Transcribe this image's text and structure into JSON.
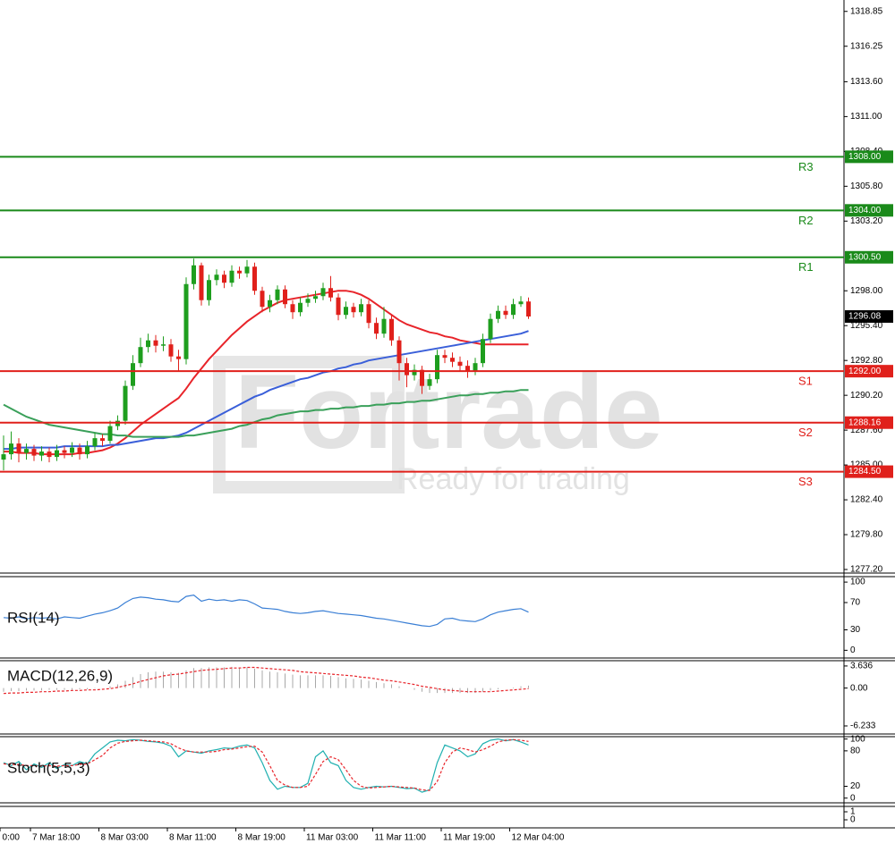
{
  "watermark": {
    "brand": "Fortrade",
    "tagline": "Ready for trading"
  },
  "chart_data": [
    {
      "type": "candlestick",
      "categories": [
        "0:00",
        null,
        null,
        null,
        "7 Mar 18:00",
        null,
        null,
        null,
        null,
        null,
        null,
        null,
        null,
        "8 Mar 03:00",
        null,
        null,
        null,
        null,
        null,
        null,
        null,
        null,
        "8 Mar 11:00",
        null,
        null,
        null,
        null,
        null,
        null,
        null,
        null,
        "8 Mar 19:00",
        null,
        null,
        null,
        null,
        null,
        null,
        null,
        null,
        "11 Mar 03:00",
        null,
        null,
        null,
        null,
        null,
        null,
        null,
        null,
        "11 Mar 11:00",
        null,
        null,
        null,
        null,
        null,
        null,
        null,
        null,
        "11 Mar 19:00",
        null,
        null,
        null,
        null,
        null,
        null,
        null,
        null,
        "12 Mar 04:00",
        null,
        null
      ],
      "open": [
        1285.4,
        1285.8,
        1286.6,
        1285.9,
        1286.2,
        1285.7,
        1286.0,
        1285.6,
        1286.1,
        1285.9,
        1286.3,
        1285.8,
        1286.4,
        1287.0,
        1286.8,
        1287.9,
        1288.3,
        1290.9,
        1292.6,
        1293.8,
        1294.3,
        1293.9,
        1294.0,
        1293.1,
        1292.9,
        1298.5,
        1299.9,
        1297.3,
        1298.8,
        1299.2,
        1298.6,
        1299.5,
        1299.3,
        1299.8,
        1298.0,
        1296.8,
        1297.3,
        1298.1,
        1297.0,
        1296.4,
        1297.1,
        1297.4,
        1297.6,
        1298.2,
        1297.5,
        1296.2,
        1296.8,
        1296.4,
        1297.0,
        1295.6,
        1294.8,
        1295.9,
        1294.3,
        1292.6,
        1291.7,
        1292.1,
        1290.9,
        1291.4,
        1293.2,
        1293.0,
        1292.7,
        1292.4,
        1292.0,
        1292.6,
        1294.4,
        1295.9,
        1296.5,
        1296.2,
        1297.0,
        1297.2
      ],
      "high": [
        1287.2,
        1287.5,
        1287.0,
        1286.6,
        1286.5,
        1286.4,
        1286.3,
        1286.5,
        1286.4,
        1286.7,
        1286.6,
        1286.8,
        1287.4,
        1287.3,
        1288.3,
        1288.7,
        1291.3,
        1293.2,
        1294.5,
        1294.8,
        1294.7,
        1294.6,
        1294.4,
        1293.6,
        1299.0,
        1300.4,
        1300.1,
        1299.2,
        1299.6,
        1299.5,
        1299.9,
        1299.8,
        1300.3,
        1300.1,
        1298.3,
        1297.7,
        1298.4,
        1298.4,
        1297.3,
        1297.5,
        1297.8,
        1298.0,
        1298.6,
        1299.1,
        1297.8,
        1297.2,
        1297.1,
        1297.4,
        1297.3,
        1296.0,
        1296.8,
        1296.2,
        1294.6,
        1293.0,
        1292.5,
        1292.4,
        1291.8,
        1293.6,
        1293.6,
        1293.4,
        1293.1,
        1292.8,
        1293.0,
        1294.8,
        1296.3,
        1296.9,
        1296.9,
        1297.4,
        1297.6,
        1297.5
      ],
      "low": [
        1284.6,
        1285.4,
        1285.2,
        1285.4,
        1285.3,
        1285.3,
        1285.2,
        1285.3,
        1285.5,
        1285.6,
        1285.4,
        1285.5,
        1286.1,
        1286.4,
        1286.6,
        1287.6,
        1288.0,
        1290.6,
        1292.3,
        1293.4,
        1293.4,
        1293.5,
        1292.7,
        1292.0,
        1292.5,
        1298.1,
        1296.9,
        1296.9,
        1298.4,
        1298.2,
        1298.3,
        1298.9,
        1299.0,
        1297.7,
        1296.4,
        1296.4,
        1297.0,
        1296.7,
        1295.9,
        1296.1,
        1296.8,
        1297.1,
        1297.3,
        1297.2,
        1295.8,
        1295.9,
        1296.0,
        1296.1,
        1295.2,
        1294.4,
        1294.5,
        1293.9,
        1291.3,
        1290.8,
        1291.3,
        1290.3,
        1290.6,
        1291.1,
        1292.6,
        1292.3,
        1292.0,
        1291.5,
        1291.7,
        1292.3,
        1294.1,
        1295.6,
        1295.9,
        1295.9,
        1296.8,
        1295.9
      ],
      "close": [
        1285.8,
        1286.6,
        1285.9,
        1286.2,
        1285.7,
        1286.0,
        1285.6,
        1286.1,
        1285.9,
        1286.3,
        1285.8,
        1286.4,
        1287.0,
        1286.8,
        1287.9,
        1288.3,
        1290.9,
        1292.6,
        1293.8,
        1294.3,
        1293.9,
        1294.0,
        1293.1,
        1292.9,
        1298.5,
        1299.9,
        1297.3,
        1298.8,
        1299.2,
        1298.6,
        1299.5,
        1299.3,
        1299.8,
        1298.0,
        1296.8,
        1297.3,
        1298.1,
        1297.0,
        1296.4,
        1297.1,
        1297.4,
        1297.6,
        1298.2,
        1297.5,
        1296.2,
        1296.8,
        1296.4,
        1297.0,
        1295.6,
        1294.8,
        1295.9,
        1294.3,
        1292.6,
        1291.7,
        1292.1,
        1290.9,
        1291.4,
        1293.2,
        1293.0,
        1292.7,
        1292.4,
        1292.0,
        1292.6,
        1294.4,
        1295.9,
        1296.5,
        1296.2,
        1297.0,
        1297.2,
        1296.08
      ],
      "up_color": "#1e9e1e",
      "down_color": "#e0201b",
      "series": [
        {
          "color": "#e8242a",
          "values": [
            1286.0,
            1286.0,
            1285.9,
            1285.9,
            1285.9,
            1285.8,
            1285.8,
            1285.8,
            1285.8,
            1285.8,
            1285.9,
            1285.9,
            1286.0,
            1286.1,
            1286.3,
            1286.6,
            1287.0,
            1287.5,
            1288.0,
            1288.4,
            1288.8,
            1289.2,
            1289.6,
            1290.0,
            1290.7,
            1291.5,
            1292.2,
            1292.9,
            1293.5,
            1294.1,
            1294.7,
            1295.2,
            1295.7,
            1296.1,
            1296.5,
            1296.8,
            1297.1,
            1297.3,
            1297.4,
            1297.5,
            1297.6,
            1297.7,
            1297.8,
            1297.9,
            1298.0,
            1298.0,
            1297.9,
            1297.7,
            1297.4,
            1297.0,
            1296.6,
            1296.2,
            1295.8,
            1295.5,
            1295.3,
            1295.1,
            1294.9,
            1294.8,
            1294.6,
            1294.5,
            1294.3,
            1294.2,
            1294.1,
            1294.0,
            1294.0,
            1294.0,
            1294.0,
            1294.0,
            1294.0,
            1294.0
          ]
        },
        {
          "color": "#3a5fd9",
          "values": [
            1286.2,
            1286.2,
            1286.3,
            1286.3,
            1286.3,
            1286.3,
            1286.3,
            1286.3,
            1286.4,
            1286.4,
            1286.4,
            1286.4,
            1286.4,
            1286.4,
            1286.5,
            1286.5,
            1286.6,
            1286.7,
            1286.8,
            1286.9,
            1287.0,
            1287.0,
            1287.1,
            1287.2,
            1287.4,
            1287.7,
            1288.0,
            1288.3,
            1288.6,
            1288.9,
            1289.2,
            1289.5,
            1289.8,
            1290.1,
            1290.3,
            1290.6,
            1290.8,
            1291.0,
            1291.2,
            1291.4,
            1291.5,
            1291.7,
            1291.9,
            1292.0,
            1292.2,
            1292.3,
            1292.5,
            1292.6,
            1292.8,
            1292.9,
            1293.0,
            1293.1,
            1293.2,
            1293.3,
            1293.4,
            1293.5,
            1293.6,
            1293.7,
            1293.8,
            1293.9,
            1294.0,
            1294.1,
            1294.2,
            1294.3,
            1294.4,
            1294.5,
            1294.6,
            1294.7,
            1294.8,
            1295.0
          ]
        },
        {
          "color": "#3aa05a",
          "values": [
            1289.5,
            1289.2,
            1288.9,
            1288.6,
            1288.4,
            1288.2,
            1288.0,
            1287.9,
            1287.8,
            1287.7,
            1287.6,
            1287.5,
            1287.4,
            1287.3,
            1287.3,
            1287.2,
            1287.2,
            1287.1,
            1287.1,
            1287.1,
            1287.1,
            1287.1,
            1287.1,
            1287.1,
            1287.2,
            1287.2,
            1287.3,
            1287.4,
            1287.5,
            1287.6,
            1287.7,
            1287.9,
            1288.0,
            1288.2,
            1288.4,
            1288.5,
            1288.7,
            1288.8,
            1288.9,
            1289.0,
            1289.0,
            1289.1,
            1289.1,
            1289.2,
            1289.2,
            1289.3,
            1289.3,
            1289.4,
            1289.4,
            1289.5,
            1289.5,
            1289.6,
            1289.6,
            1289.7,
            1289.7,
            1289.8,
            1289.8,
            1289.9,
            1290.0,
            1290.1,
            1290.2,
            1290.2,
            1290.3,
            1290.3,
            1290.4,
            1290.4,
            1290.5,
            1290.5,
            1290.6,
            1290.6
          ]
        }
      ],
      "levels": [
        {
          "name": "R3",
          "value": 1308,
          "label": "1308.00",
          "color": "#1a8a1a"
        },
        {
          "name": "R2",
          "value": 1304,
          "label": "1304.00",
          "color": "#1a8a1a"
        },
        {
          "name": "R1",
          "value": 1300.5,
          "label": "1300.50",
          "color": "#1a8a1a"
        },
        {
          "name": "S1",
          "value": 1292,
          "label": "1292.00",
          "color": "#e0201b"
        },
        {
          "name": "S2",
          "value": 1288.16,
          "label": "1288.16",
          "color": "#e0201b"
        },
        {
          "name": "S3",
          "value": 1284.5,
          "label": "1284.50",
          "color": "#e0201b"
        }
      ],
      "last_price": {
        "value": 1296.08,
        "label": "1296.08"
      },
      "ylim": [
        1277.0,
        1319.5
      ],
      "yticks": [
        1318.85,
        1316.25,
        {
          "value": 1313.6,
          "label": "1313.60"
        },
        {
          "value": 1311,
          "label": "1311.00"
        },
        {
          "value": 1308.4,
          "label": "1308.40"
        },
        {
          "value": 1305.8,
          "label": "1305.80"
        },
        {
          "value": 1303.2,
          "label": "1303.20"
        },
        {
          "value": 1298,
          "label": "1298.00"
        },
        {
          "value": 1295.4,
          "label": "1295.40"
        },
        {
          "value": 1292.8,
          "label": "1292.80"
        },
        {
          "value": 1290.2,
          "label": "1290.20"
        },
        {
          "value": 1287.6,
          "label": "1287.60"
        },
        {
          "value": 1285,
          "label": "1285.00"
        },
        {
          "value": 1282.4,
          "label": "1282.40"
        },
        {
          "value": 1279.8,
          "label": "1279.80"
        },
        {
          "value": 1277.2,
          "label": "1277.20"
        }
      ]
    },
    {
      "type": "line",
      "title": "RSI(14)",
      "ylim": [
        -10,
        108
      ],
      "yticks": [
        0,
        30,
        70,
        100
      ],
      "series": [
        {
          "color": "#3a7fd5",
          "values": [
            48,
            47,
            49,
            46,
            48,
            47,
            48,
            46,
            49,
            48,
            47,
            50,
            53,
            55,
            58,
            62,
            70,
            76,
            78,
            77,
            75,
            74,
            72,
            71,
            79,
            81,
            72,
            75,
            73,
            74,
            72,
            74,
            73,
            68,
            62,
            61,
            60,
            57,
            55,
            54,
            55,
            57,
            58,
            56,
            54,
            53,
            52,
            51,
            49,
            47,
            46,
            44,
            42,
            40,
            38,
            36,
            35,
            38,
            46,
            47,
            44,
            43,
            42,
            46,
            52,
            56,
            58,
            60,
            61,
            56
          ]
        }
      ]
    },
    {
      "type": "macd",
      "title": "MACD(12,26,9)",
      "ylim": [
        -7.56,
        4.36
      ],
      "yticks": [
        -6.233,
        {
          "value": 0,
          "label": "0.00"
        },
        3.636
      ],
      "histogram": {
        "color": "#a8a8a8",
        "values": [
          -0.6,
          -0.5,
          -0.5,
          -0.4,
          -0.4,
          -0.4,
          -0.3,
          -0.3,
          -0.3,
          -0.3,
          -0.2,
          -0.2,
          -0.1,
          0.0,
          0.3,
          0.6,
          1.2,
          1.8,
          2.3,
          2.6,
          2.7,
          2.7,
          2.6,
          2.5,
          2.9,
          3.3,
          3.3,
          3.4,
          3.4,
          3.4,
          3.5,
          3.4,
          3.4,
          3.2,
          2.9,
          2.7,
          2.6,
          2.4,
          2.2,
          2.1,
          2.1,
          2.1,
          2.1,
          2.0,
          1.8,
          1.6,
          1.5,
          1.4,
          1.2,
          1.0,
          0.8,
          0.6,
          0.3,
          0.0,
          -0.3,
          -0.6,
          -0.8,
          -0.8,
          -0.8,
          -0.8,
          -0.8,
          -0.8,
          -0.8,
          -0.6,
          -0.4,
          -0.2,
          0.0,
          0.1,
          0.3,
          0.4
        ]
      },
      "signal": {
        "color": "#e8242a",
        "dash": true,
        "values": [
          -0.9,
          -0.8,
          -0.8,
          -0.7,
          -0.7,
          -0.6,
          -0.6,
          -0.5,
          -0.5,
          -0.4,
          -0.4,
          -0.3,
          -0.3,
          -0.2,
          -0.1,
          0.1,
          0.4,
          0.7,
          1.1,
          1.4,
          1.7,
          2.0,
          2.2,
          2.3,
          2.5,
          2.7,
          2.9,
          3.0,
          3.1,
          3.2,
          3.3,
          3.3,
          3.4,
          3.4,
          3.3,
          3.2,
          3.1,
          3.0,
          2.9,
          2.7,
          2.6,
          2.5,
          2.4,
          2.3,
          2.2,
          2.1,
          2.0,
          1.8,
          1.7,
          1.5,
          1.3,
          1.2,
          1.0,
          0.8,
          0.6,
          0.3,
          0.1,
          -0.1,
          -0.3,
          -0.4,
          -0.5,
          -0.6,
          -0.6,
          -0.6,
          -0.6,
          -0.5,
          -0.4,
          -0.3,
          -0.2,
          -0.1
        ]
      }
    },
    {
      "type": "line",
      "title": "Stoch(5,5,3)",
      "ylim": [
        -8,
        104
      ],
      "yticks": [
        0,
        20,
        80,
        100
      ],
      "series": [
        {
          "color": "#1fb0b0",
          "values": [
            60,
            55,
            62,
            48,
            58,
            52,
            60,
            50,
            57,
            55,
            62,
            58,
            75,
            85,
            95,
            98,
            97,
            99,
            98,
            96,
            95,
            93,
            88,
            70,
            80,
            78,
            76,
            80,
            82,
            85,
            84,
            88,
            90,
            85,
            60,
            30,
            15,
            20,
            18,
            18,
            25,
            70,
            80,
            60,
            55,
            30,
            18,
            15,
            18,
            20,
            19,
            20,
            18,
            16,
            17,
            10,
            14,
            60,
            90,
            85,
            80,
            70,
            75,
            92,
            98,
            100,
            97,
            99,
            95,
            90
          ]
        },
        {
          "color": "#e8242a",
          "dash": true,
          "values": [
            58,
            57,
            57,
            55,
            55,
            54,
            55,
            54,
            55,
            55,
            57,
            58,
            65,
            72,
            85,
            93,
            96,
            97,
            98,
            97,
            96,
            95,
            92,
            85,
            80,
            78,
            78,
            78,
            79,
            82,
            83,
            85,
            87,
            88,
            78,
            55,
            30,
            22,
            18,
            18,
            20,
            40,
            62,
            70,
            65,
            48,
            30,
            20,
            17,
            18,
            19,
            20,
            19,
            18,
            17,
            14,
            13,
            28,
            60,
            78,
            85,
            82,
            78,
            82,
            88,
            95,
            98,
            99,
            98,
            96
          ]
        }
      ]
    },
    {
      "type": "line",
      "ylim": [
        -0.89,
        1.67
      ],
      "yticks": [
        0,
        1
      ],
      "series": []
    }
  ]
}
